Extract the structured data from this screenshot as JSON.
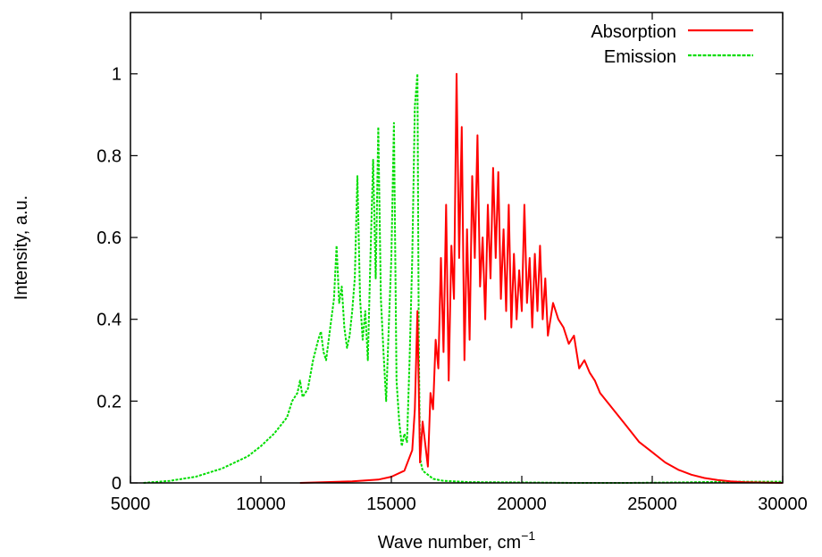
{
  "chart_data": {
    "type": "line",
    "xlabel": "Wave number, cm",
    "xlabel_superscript": "−1",
    "ylabel": "Intensity, a.u.",
    "xlim": [
      5000,
      30000
    ],
    "ylim": [
      0,
      1.15
    ],
    "grid": false,
    "legend_position": "top-right",
    "x_ticks": [
      {
        "value": 5000,
        "label": "5000"
      },
      {
        "value": 10000,
        "label": "10000"
      },
      {
        "value": 15000,
        "label": "15000"
      },
      {
        "value": 20000,
        "label": "20000"
      },
      {
        "value": 25000,
        "label": "25000"
      },
      {
        "value": 30000,
        "label": "30000"
      }
    ],
    "y_ticks": [
      {
        "value": 0,
        "label": "0"
      },
      {
        "value": 0.2,
        "label": "0.2"
      },
      {
        "value": 0.4,
        "label": "0.4"
      },
      {
        "value": 0.6,
        "label": "0.6"
      },
      {
        "value": 0.8,
        "label": "0.8"
      },
      {
        "value": 1,
        "label": "1"
      }
    ],
    "series": [
      {
        "name": "Absorption",
        "color": "#ff0000",
        "dash": "solid",
        "x": [
          11500,
          12500,
          13500,
          14500,
          15000,
          15500,
          15800,
          15900,
          16000,
          16100,
          16200,
          16400,
          16500,
          16600,
          16700,
          16800,
          16900,
          17000,
          17100,
          17200,
          17300,
          17400,
          17500,
          17600,
          17700,
          17800,
          17900,
          18000,
          18100,
          18200,
          18300,
          18400,
          18500,
          18600,
          18700,
          18800,
          18900,
          19000,
          19100,
          19200,
          19300,
          19400,
          19500,
          19600,
          19700,
          19800,
          19900,
          20000,
          20100,
          20200,
          20300,
          20400,
          20500,
          20600,
          20700,
          20800,
          20900,
          21000,
          21200,
          21400,
          21600,
          21800,
          22000,
          22200,
          22400,
          22600,
          22800,
          23000,
          23500,
          24000,
          24500,
          25000,
          25500,
          26000,
          26500,
          27000,
          27500,
          28000,
          28500,
          29000,
          30000
        ],
        "y": [
          0.0,
          0.002,
          0.004,
          0.008,
          0.015,
          0.03,
          0.08,
          0.18,
          0.42,
          0.05,
          0.15,
          0.04,
          0.22,
          0.18,
          0.35,
          0.28,
          0.55,
          0.32,
          0.68,
          0.25,
          0.58,
          0.45,
          1.0,
          0.55,
          0.87,
          0.3,
          0.62,
          0.35,
          0.75,
          0.55,
          0.85,
          0.48,
          0.6,
          0.4,
          0.68,
          0.5,
          0.77,
          0.55,
          0.76,
          0.45,
          0.62,
          0.42,
          0.68,
          0.38,
          0.56,
          0.4,
          0.52,
          0.42,
          0.68,
          0.44,
          0.55,
          0.38,
          0.56,
          0.42,
          0.58,
          0.4,
          0.5,
          0.36,
          0.44,
          0.4,
          0.38,
          0.34,
          0.36,
          0.28,
          0.3,
          0.27,
          0.25,
          0.22,
          0.18,
          0.14,
          0.1,
          0.075,
          0.05,
          0.032,
          0.02,
          0.012,
          0.007,
          0.004,
          0.002,
          0.001,
          0.0
        ]
      },
      {
        "name": "Emission",
        "color": "#00dd00",
        "dash": "dashed",
        "x": [
          5500,
          6500,
          7500,
          8500,
          9000,
          9500,
          10000,
          10500,
          11000,
          11200,
          11400,
          11500,
          11600,
          11800,
          12000,
          12200,
          12300,
          12400,
          12500,
          12600,
          12700,
          12800,
          12900,
          13000,
          13100,
          13200,
          13300,
          13400,
          13500,
          13600,
          13700,
          13800,
          13900,
          14000,
          14100,
          14200,
          14300,
          14400,
          14500,
          14600,
          14700,
          14800,
          14900,
          15000,
          15100,
          15200,
          15300,
          15400,
          15500,
          15600,
          15700,
          15800,
          15900,
          16000,
          16050,
          16100,
          16200,
          16400,
          16600,
          17000,
          18000,
          20000,
          22000,
          24000,
          26000,
          28000,
          30000
        ],
        "y": [
          0.0,
          0.005,
          0.015,
          0.035,
          0.05,
          0.065,
          0.09,
          0.12,
          0.16,
          0.2,
          0.22,
          0.25,
          0.21,
          0.23,
          0.3,
          0.35,
          0.37,
          0.32,
          0.3,
          0.35,
          0.4,
          0.45,
          0.58,
          0.44,
          0.48,
          0.38,
          0.33,
          0.36,
          0.42,
          0.5,
          0.75,
          0.45,
          0.35,
          0.42,
          0.3,
          0.55,
          0.79,
          0.5,
          0.87,
          0.45,
          0.32,
          0.2,
          0.38,
          0.55,
          0.88,
          0.25,
          0.15,
          0.09,
          0.12,
          0.1,
          0.3,
          0.55,
          0.92,
          1.0,
          0.35,
          0.06,
          0.03,
          0.02,
          0.01,
          0.005,
          0.002,
          0.001,
          0.0,
          0.0,
          0.001,
          0.003,
          0.003
        ]
      }
    ]
  }
}
